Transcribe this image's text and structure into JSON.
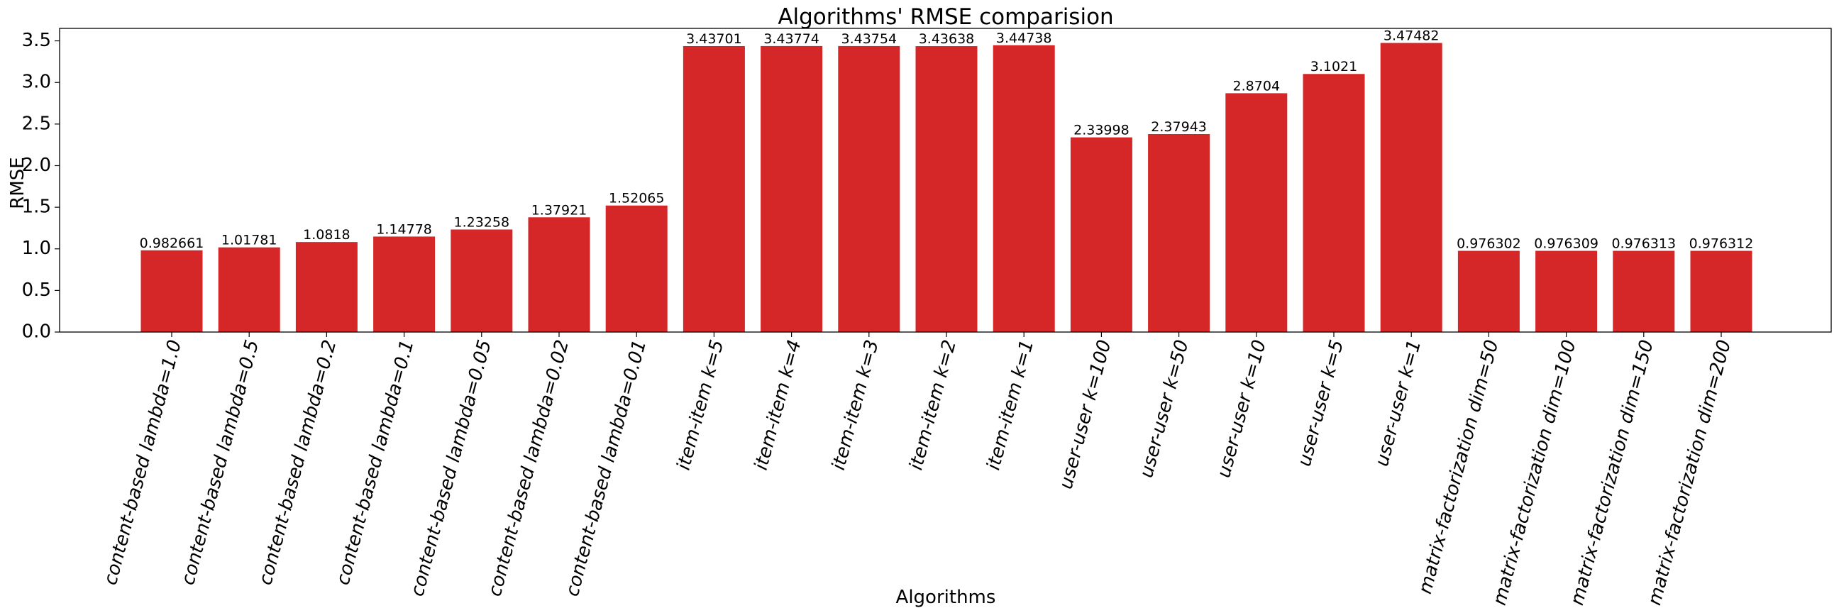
{
  "chart_data": {
    "type": "bar",
    "title": "Algorithms' RMSE comparision",
    "xlabel": "Algorithms",
    "ylabel": "RMSE",
    "ylim": [
      0,
      3.65
    ],
    "yticks": [
      "0.0",
      "0.5",
      "1.0",
      "1.5",
      "2.0",
      "2.5",
      "3.0",
      "3.5"
    ],
    "ytick_values": [
      0,
      0.5,
      1.0,
      1.5,
      2.0,
      2.5,
      3.0,
      3.5
    ],
    "grid": false,
    "bar_color": "#d62728",
    "categories": [
      "content-based lambda=1.0",
      "content-based lambda=0.5",
      "content-based lambda=0.2",
      "content-based lambda=0.1",
      "content-based lambda=0.05",
      "content-based lambda=0.02",
      "content-based lambda=0.01",
      "item-item k=5",
      "item-item k=4",
      "item-item k=3",
      "item-item k=2",
      "item-item k=1",
      "user-user k=100",
      "user-user k=50",
      "user-user k=10",
      "user-user k=5",
      "user-user k=1",
      "matrix-factorization dim=50",
      "matrix-factorization dim=100",
      "matrix-factorization dim=150",
      "matrix-factorization dim=200"
    ],
    "values": [
      0.982661,
      1.01781,
      1.0818,
      1.14778,
      1.23258,
      1.37921,
      1.52065,
      3.43701,
      3.43774,
      3.43754,
      3.43638,
      3.44738,
      2.33998,
      2.37943,
      2.8704,
      3.1021,
      3.47482,
      0.976302,
      0.976309,
      0.976313,
      0.976312
    ],
    "value_labels": [
      "0.982661",
      "1.01781",
      "1.0818",
      "1.14778",
      "1.23258",
      "1.37921",
      "1.52065",
      "3.43701",
      "3.43774",
      "3.43754",
      "3.43638",
      "3.44738",
      "2.33998",
      "2.37943",
      "2.8704",
      "3.1021",
      "3.47482",
      "0.976302",
      "0.976309",
      "0.976313",
      "0.976312"
    ]
  }
}
